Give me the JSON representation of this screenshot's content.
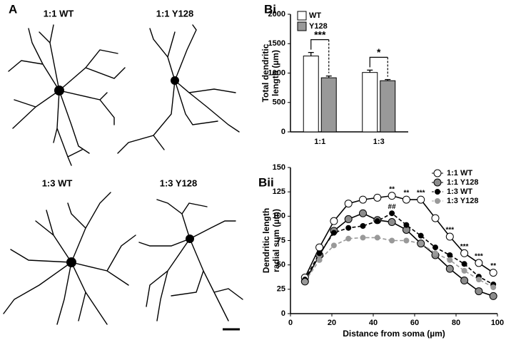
{
  "panel_a": {
    "label": "A",
    "cells": [
      "1:1 WT",
      "1:1 Y128",
      "1:3 WT",
      "1:3 Y128"
    ]
  },
  "chart_data": [
    {
      "type": "bar",
      "panel_label": "Bi",
      "ylabel": [
        "Total dendritic",
        "length (µm)"
      ],
      "categories": [
        "1:1",
        "1:3"
      ],
      "series": [
        {
          "name": "WT",
          "color": "#ffffff",
          "values": [
            1290,
            1010
          ],
          "errors": [
            60,
            40
          ]
        },
        {
          "name": "Y128",
          "color": "#999999",
          "values": [
            920,
            870
          ],
          "errors": [
            30,
            20
          ]
        }
      ],
      "significance": [
        "***",
        "*"
      ],
      "ylim": [
        0,
        2000
      ],
      "yticks": [
        0,
        500,
        1000,
        1500,
        2000
      ],
      "legend": "upper-left"
    },
    {
      "type": "line",
      "panel_label": "Bii",
      "ylabel": [
        "Dendritic length",
        "radial sum (µm)"
      ],
      "xlabel": "Distance from soma (µm)",
      "x": [
        7,
        14,
        21,
        28,
        35,
        42,
        49,
        56,
        63,
        70,
        77,
        84,
        91,
        98
      ],
      "series": [
        {
          "name": "1:1 WT",
          "color": "#000000",
          "marker_fill": "#ffffff",
          "dash": false,
          "marker_size": 5,
          "values": [
            37,
            68,
            95,
            113,
            117,
            119,
            121,
            117,
            117,
            98,
            79,
            62,
            52,
            42
          ]
        },
        {
          "name": "1:1 Y128",
          "color": "#000000",
          "marker_fill": "#8c8c8c",
          "dash": false,
          "marker_size": 5,
          "values": [
            33,
            60,
            85,
            97,
            103,
            96,
            94,
            86,
            72,
            60,
            46,
            34,
            23,
            18
          ]
        },
        {
          "name": "1:3 WT",
          "color": "#000000",
          "marker_fill": "#000000",
          "dash": true,
          "marker_size": 3.5,
          "values": [
            35,
            62,
            83,
            88,
            90,
            95,
            103,
            91,
            80,
            68,
            60,
            51,
            38,
            30
          ]
        },
        {
          "name": "1:3 Y128",
          "color": "#999999",
          "marker_fill": "#999999",
          "dash": true,
          "marker_size": 3.5,
          "values": [
            33,
            55,
            70,
            77,
            78,
            78,
            75,
            75,
            72,
            62,
            55,
            44,
            35,
            27
          ]
        }
      ],
      "annotations": [
        {
          "text": "**",
          "x": 49
        },
        {
          "text": "**",
          "x": 56
        },
        {
          "text": "***",
          "x": 63
        },
        {
          "text": "***",
          "x": 77
        },
        {
          "text": "***",
          "x": 84
        },
        {
          "text": "***",
          "x": 91
        },
        {
          "text": "**",
          "x": 98
        },
        {
          "text": "##",
          "x": 49,
          "series": 2
        }
      ],
      "xlim": [
        0,
        100
      ],
      "xticks": [
        0,
        20,
        40,
        60,
        80,
        100
      ],
      "ylim": [
        0,
        150
      ],
      "yticks": [
        0,
        25,
        50,
        75,
        100,
        125,
        150
      ],
      "legend": "upper-right"
    }
  ]
}
